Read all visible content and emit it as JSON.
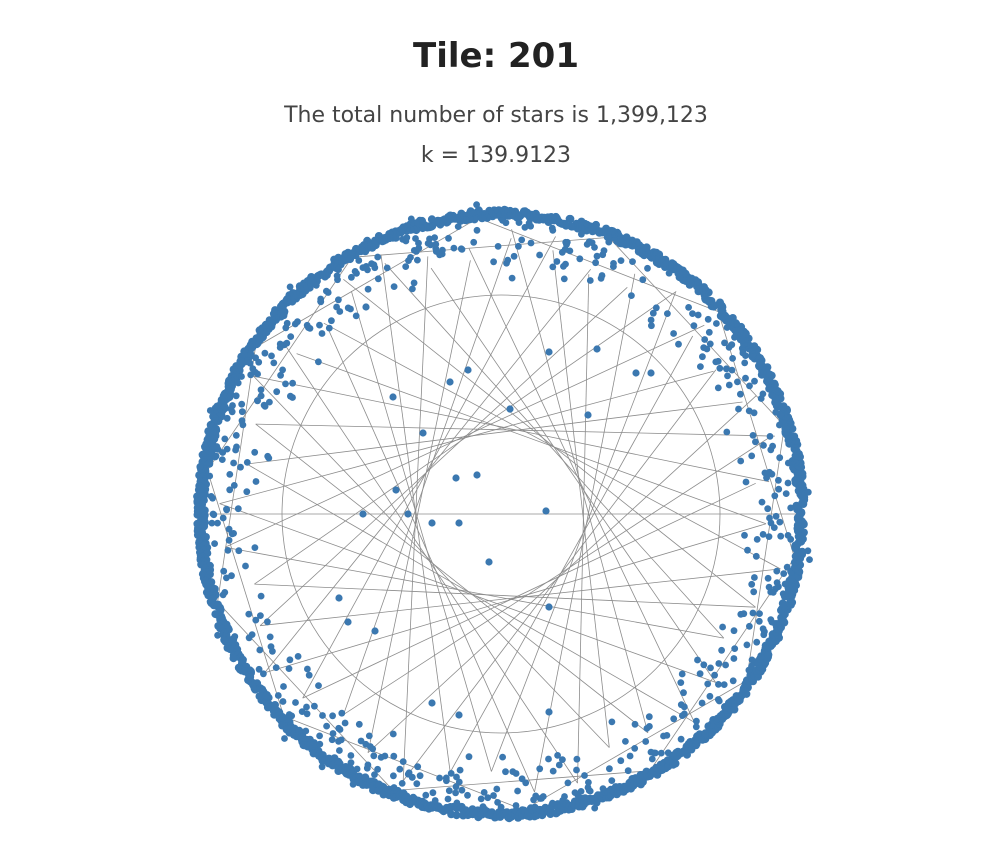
{
  "chart_data": {
    "type": "scatter",
    "title": "Tile: 201",
    "subtitle_lines": [
      "The total number of stars is 1,399,123",
      "k = 139.9123"
    ],
    "total_stars": 1399123,
    "k": 139.9123,
    "grid": false,
    "legend": "none",
    "colors": {
      "points": "#3b78b0",
      "lines": "#8c8c8c"
    },
    "ring": {
      "outer_radius": 1.0,
      "inner_circle_radius": 0.73,
      "ring_point_count": 1400,
      "star_polygon": {
        "vertices": 40,
        "step": 16
      }
    },
    "interior_points": [
      {
        "x": -0.36,
        "y": 0.39
      },
      {
        "x": -0.17,
        "y": 0.44
      },
      {
        "x": -0.11,
        "y": 0.48
      },
      {
        "x": 0.03,
        "y": 0.35
      },
      {
        "x": 0.29,
        "y": 0.33
      },
      {
        "x": 0.16,
        "y": 0.54
      },
      {
        "x": -0.26,
        "y": 0.27
      },
      {
        "x": -0.15,
        "y": 0.12
      },
      {
        "x": -0.08,
        "y": 0.13
      },
      {
        "x": -0.35,
        "y": 0.08
      },
      {
        "x": -0.31,
        "y": 0.0
      },
      {
        "x": -0.23,
        "y": -0.03
      },
      {
        "x": -0.14,
        "y": -0.03
      },
      {
        "x": -0.46,
        "y": 0.0
      },
      {
        "x": 0.15,
        "y": 0.01
      },
      {
        "x": -0.04,
        "y": -0.16
      },
      {
        "x": -0.54,
        "y": -0.28
      },
      {
        "x": -0.51,
        "y": -0.36
      },
      {
        "x": -0.42,
        "y": -0.39
      },
      {
        "x": 0.16,
        "y": -0.31
      },
      {
        "x": -0.23,
        "y": -0.63
      },
      {
        "x": -0.14,
        "y": -0.67
      },
      {
        "x": 0.16,
        "y": -0.66
      },
      {
        "x": -0.45,
        "y": 0.69
      },
      {
        "x": 0.32,
        "y": 0.55
      },
      {
        "x": 0.45,
        "y": 0.47
      },
      {
        "x": 0.5,
        "y": 0.47
      }
    ]
  }
}
